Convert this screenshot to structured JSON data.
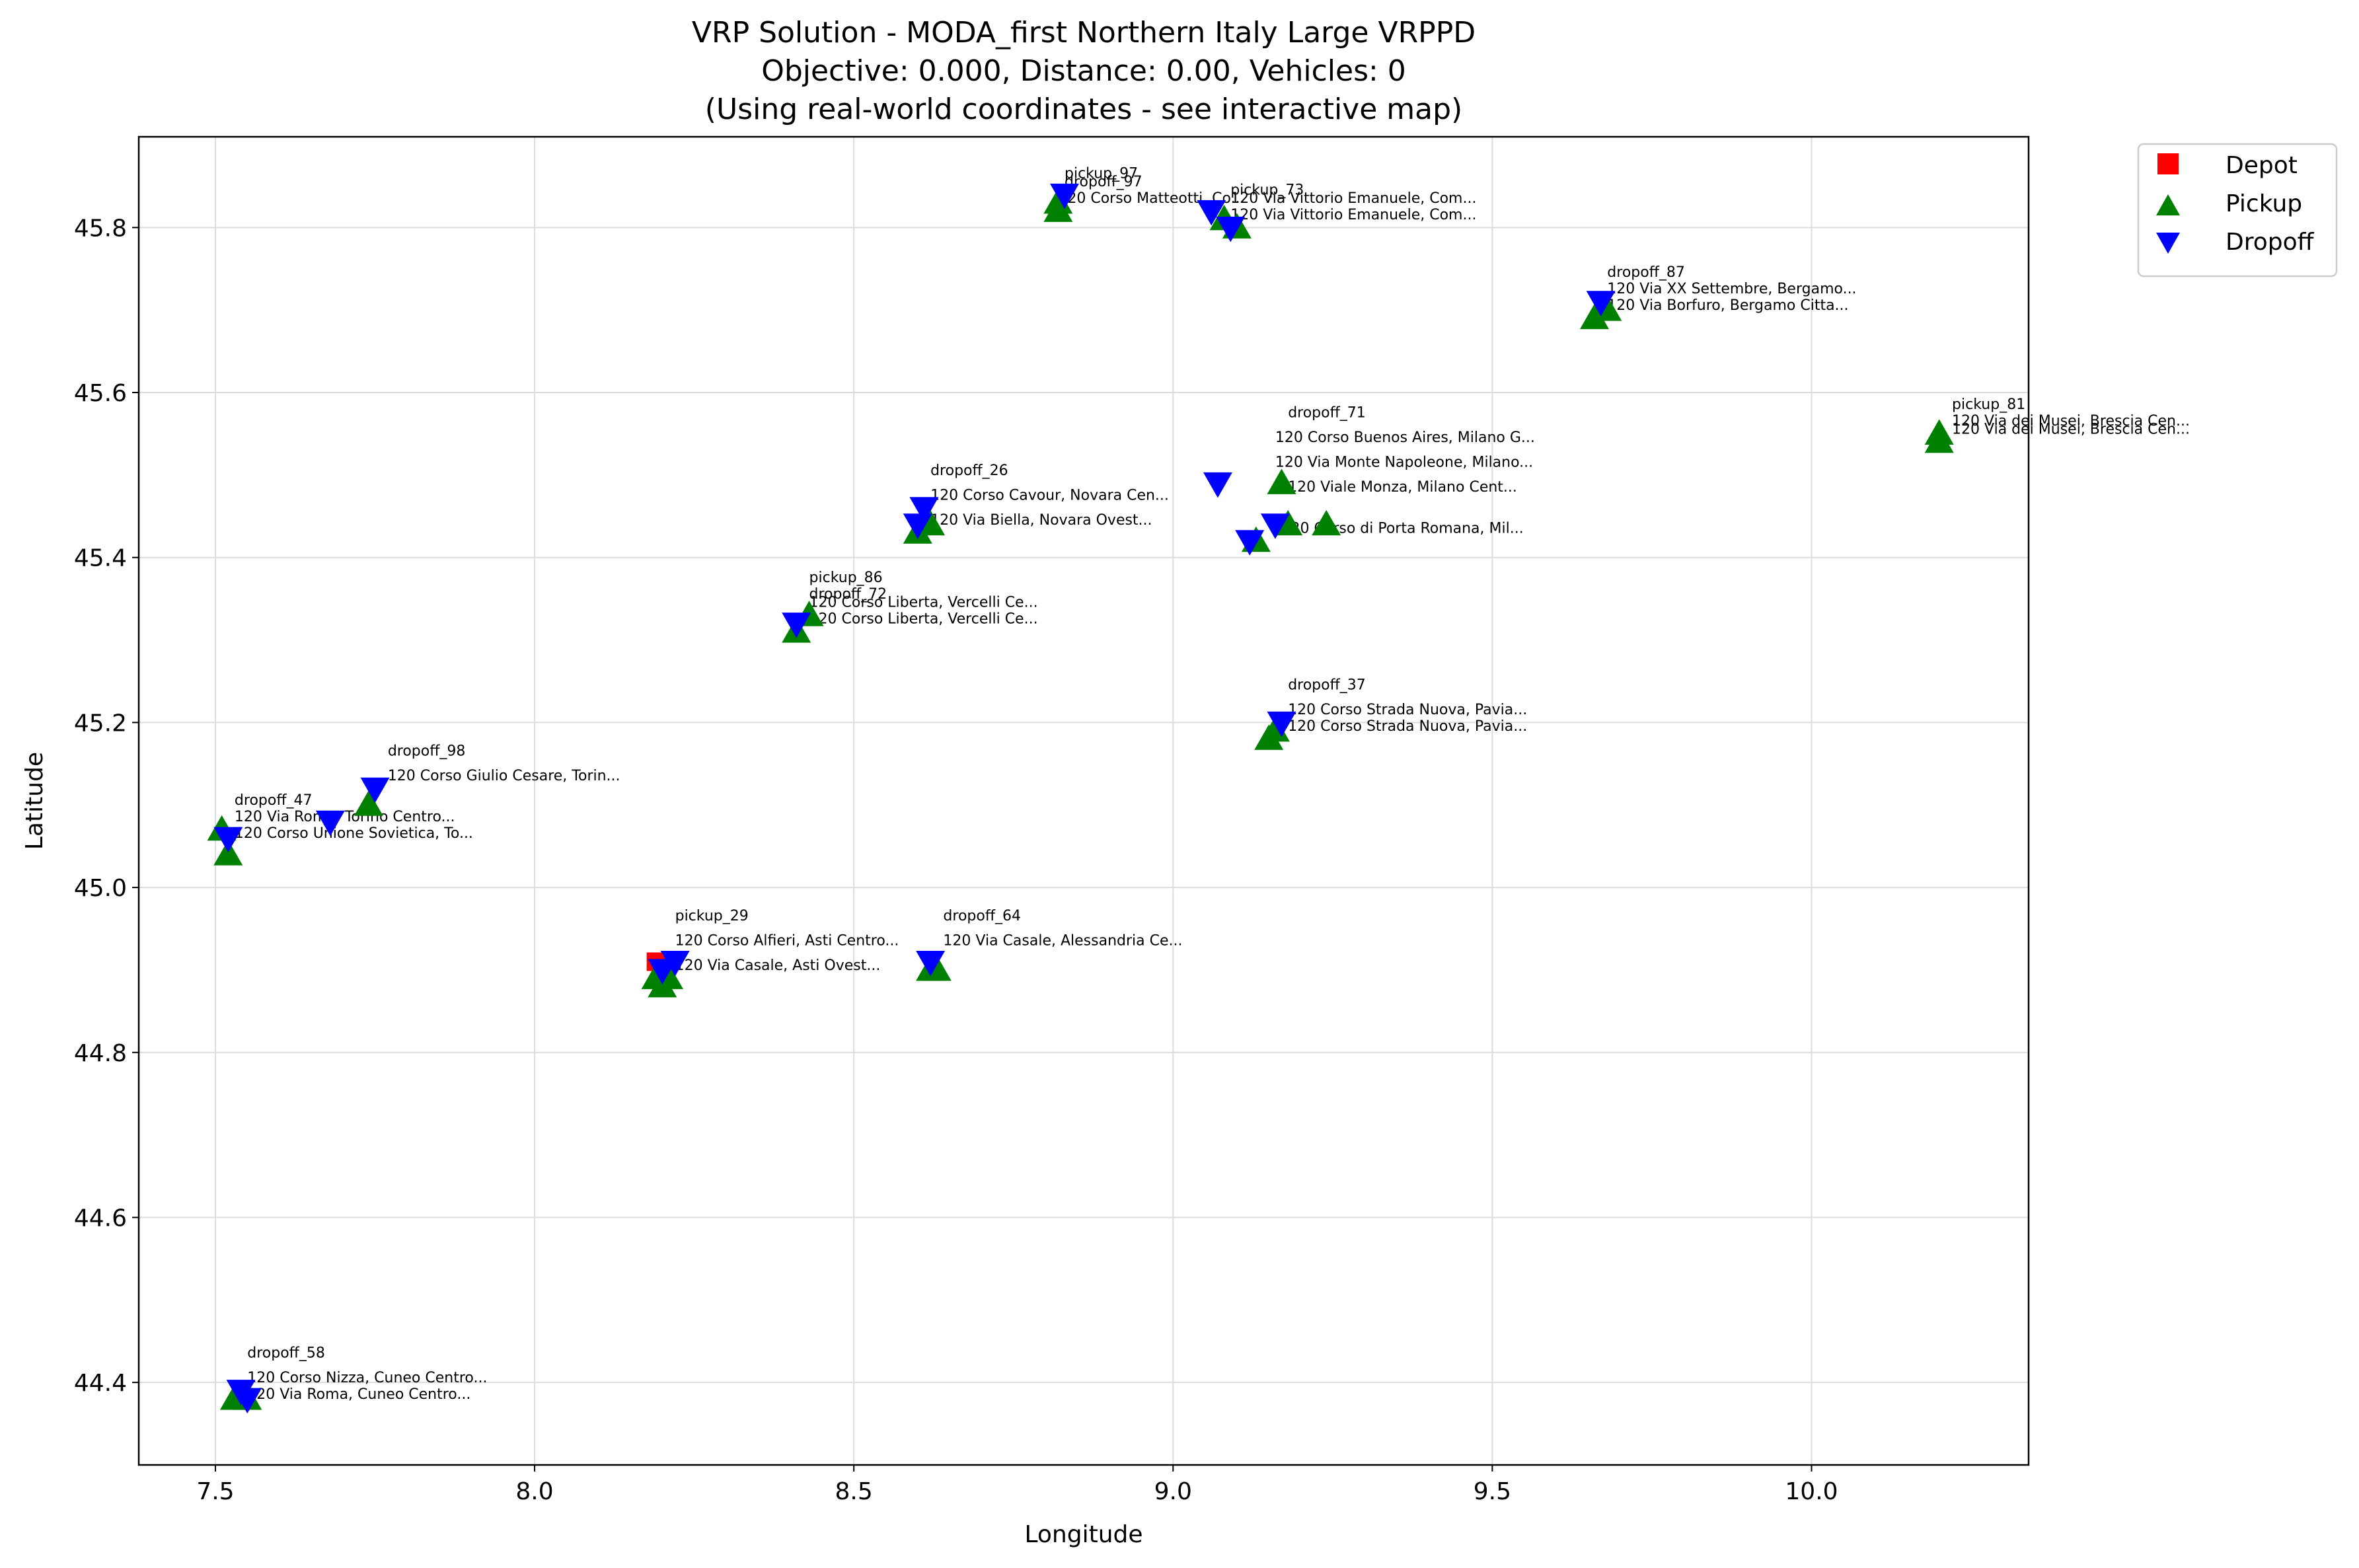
{
  "chart_data": {
    "type": "scatter",
    "title": [
      "VRP Solution - MODA_first Northern Italy Large VRPPD",
      "Objective: 0.000, Distance: 0.00, Vehicles: 0",
      "(Using real-world coordinates - see interactive map)"
    ],
    "xlabel": "Longitude",
    "ylabel": "Latitude",
    "xlim": [
      7.38,
      10.34
    ],
    "ylim": [
      44.3,
      45.91
    ],
    "xticks": [
      "7.5",
      "8.0",
      "8.5",
      "9.0",
      "9.5",
      "10.0"
    ],
    "yticks": [
      "44.4",
      "44.6",
      "44.8",
      "45.0",
      "45.2",
      "45.4",
      "45.6",
      "45.8"
    ],
    "grid": true,
    "legend_position": "outside-top-right",
    "colors": {
      "depot": "#ff0000",
      "pickup": "#008000",
      "dropoff": "#0000ff"
    },
    "series": [
      {
        "name": "Depot",
        "marker": "square",
        "color": "#ff0000",
        "points": [
          {
            "x": 8.19,
            "y": 44.91
          }
        ]
      },
      {
        "name": "Pickup",
        "marker": "triangle-up",
        "color": "#008000",
        "points": [
          {
            "x": 8.82,
            "y": 45.82,
            "label": "pickup_97"
          },
          {
            "x": 8.82,
            "y": 45.83
          },
          {
            "x": 9.08,
            "y": 45.81,
            "label": "pickup_73"
          },
          {
            "x": 9.1,
            "y": 45.8
          },
          {
            "x": 9.66,
            "y": 45.69
          },
          {
            "x": 9.68,
            "y": 45.7
          },
          {
            "x": 10.2,
            "y": 45.54,
            "label": "pickup_81"
          },
          {
            "x": 10.2,
            "y": 45.55
          },
          {
            "x": 9.17,
            "y": 45.49
          },
          {
            "x": 9.13,
            "y": 45.42
          },
          {
            "x": 9.18,
            "y": 45.44
          },
          {
            "x": 9.24,
            "y": 45.44
          },
          {
            "x": 8.6,
            "y": 45.43
          },
          {
            "x": 8.62,
            "y": 45.44
          },
          {
            "x": 8.41,
            "y": 45.31
          },
          {
            "x": 8.43,
            "y": 45.33,
            "label": "pickup_86"
          },
          {
            "x": 9.16,
            "y": 45.19
          },
          {
            "x": 9.15,
            "y": 45.18
          },
          {
            "x": 7.52,
            "y": 45.04
          },
          {
            "x": 7.51,
            "y": 45.07
          },
          {
            "x": 7.74,
            "y": 45.1
          },
          {
            "x": 8.19,
            "y": 44.89
          },
          {
            "x": 8.2,
            "y": 44.88
          },
          {
            "x": 8.21,
            "y": 44.89,
            "label": "pickup_29"
          },
          {
            "x": 8.62,
            "y": 44.9
          },
          {
            "x": 8.63,
            "y": 44.9
          },
          {
            "x": 7.53,
            "y": 44.38
          },
          {
            "x": 7.55,
            "y": 44.38
          }
        ]
      },
      {
        "name": "Dropoff",
        "marker": "triangle-down",
        "color": "#0000ff",
        "points": [
          {
            "x": 8.83,
            "y": 45.84,
            "label": "dropoff_97"
          },
          {
            "x": 9.06,
            "y": 45.82
          },
          {
            "x": 9.09,
            "y": 45.8
          },
          {
            "x": 9.67,
            "y": 45.71,
            "label": "dropoff_87"
          },
          {
            "x": 9.07,
            "y": 45.49
          },
          {
            "x": 9.12,
            "y": 45.42
          },
          {
            "x": 9.16,
            "y": 45.44,
            "label": "dropoff_71"
          },
          {
            "x": 8.6,
            "y": 45.44,
            "label": "dropoff_26"
          },
          {
            "x": 8.61,
            "y": 45.46
          },
          {
            "x": 8.41,
            "y": 45.32,
            "label": "dropoff_72"
          },
          {
            "x": 9.17,
            "y": 45.2,
            "label": "dropoff_37"
          },
          {
            "x": 7.52,
            "y": 45.06
          },
          {
            "x": 7.68,
            "y": 45.08
          },
          {
            "x": 7.75,
            "y": 45.12,
            "label": "dropoff_98"
          },
          {
            "x": 8.2,
            "y": 44.9
          },
          {
            "x": 8.22,
            "y": 44.91
          },
          {
            "x": 8.62,
            "y": 44.91,
            "label": "dropoff_64"
          },
          {
            "x": 7.54,
            "y": 44.39,
            "label": "dropoff_58"
          },
          {
            "x": 7.55,
            "y": 44.38
          }
        ]
      }
    ],
    "labels": [
      {
        "x": 8.83,
        "y": 45.86,
        "text": "pickup_97"
      },
      {
        "x": 8.83,
        "y": 45.85,
        "text": "dropoff_97"
      },
      {
        "x": 8.82,
        "y": 45.83,
        "text": "120 Corso Matteotti, Co..."
      },
      {
        "x": 9.09,
        "y": 45.84,
        "text": "pickup_73"
      },
      {
        "x": 9.09,
        "y": 45.83,
        "text": "120 Via Vittorio Emanuele, Com..."
      },
      {
        "x": 9.09,
        "y": 45.81,
        "text": "120 Via Vittorio Emanuele, Com..."
      },
      {
        "x": 9.68,
        "y": 45.74,
        "text": "dropoff_87"
      },
      {
        "x": 9.68,
        "y": 45.72,
        "text": "120 Via XX Settembre, Bergamo..."
      },
      {
        "x": 9.68,
        "y": 45.7,
        "text": "120 Via Borfuro, Bergamo Citta..."
      },
      {
        "x": 10.22,
        "y": 45.58,
        "text": "pickup_81"
      },
      {
        "x": 10.22,
        "y": 45.56,
        "text": "120 Via dei Musei, Brescia Cen..."
      },
      {
        "x": 10.22,
        "y": 45.55,
        "text": "120 Via dei Musei, Brescia Cen..."
      },
      {
        "x": 9.18,
        "y": 45.57,
        "text": "dropoff_71"
      },
      {
        "x": 9.16,
        "y": 45.54,
        "text": "120 Corso Buenos Aires, Milano G..."
      },
      {
        "x": 9.16,
        "y": 45.51,
        "text": "120 Via Monte Napoleone, Milano..."
      },
      {
        "x": 9.18,
        "y": 45.48,
        "text": "120 Viale Monza, Milano Cent..."
      },
      {
        "x": 9.17,
        "y": 45.43,
        "text": "120 Corso di Porta Romana, Mil..."
      },
      {
        "x": 8.62,
        "y": 45.5,
        "text": "dropoff_26"
      },
      {
        "x": 8.62,
        "y": 45.47,
        "text": "120 Corso Cavour, Novara Cen..."
      },
      {
        "x": 8.62,
        "y": 45.44,
        "text": "120 Via Biella, Novara Ovest..."
      },
      {
        "x": 8.43,
        "y": 45.37,
        "text": "pickup_86"
      },
      {
        "x": 8.43,
        "y": 45.35,
        "text": "dropoff_72"
      },
      {
        "x": 8.43,
        "y": 45.34,
        "text": "120 Corso Liberta, Vercelli Ce..."
      },
      {
        "x": 8.43,
        "y": 45.32,
        "text": "120 Corso Liberta, Vercelli Ce..."
      },
      {
        "x": 9.18,
        "y": 45.24,
        "text": "dropoff_37"
      },
      {
        "x": 9.18,
        "y": 45.21,
        "text": "120 Corso Strada Nuova, Pavia..."
      },
      {
        "x": 9.18,
        "y": 45.19,
        "text": "120 Corso Strada Nuova, Pavia..."
      },
      {
        "x": 7.77,
        "y": 45.16,
        "text": "dropoff_98"
      },
      {
        "x": 7.77,
        "y": 45.13,
        "text": "120 Corso Giulio Cesare, Torin..."
      },
      {
        "x": 7.53,
        "y": 45.1,
        "text": "dropoff_47"
      },
      {
        "x": 7.53,
        "y": 45.08,
        "text": "120 Via Roma, Torino Centro..."
      },
      {
        "x": 7.53,
        "y": 45.06,
        "text": "120 Corso Unione Sovietica, To..."
      },
      {
        "x": 8.22,
        "y": 44.96,
        "text": "pickup_29"
      },
      {
        "x": 8.22,
        "y": 44.93,
        "text": "120 Corso Alfieri, Asti Centro..."
      },
      {
        "x": 8.22,
        "y": 44.9,
        "text": "120 Via Casale, Asti Ovest..."
      },
      {
        "x": 8.64,
        "y": 44.96,
        "text": "dropoff_64"
      },
      {
        "x": 8.64,
        "y": 44.93,
        "text": "120 Via Casale, Alessandria Ce..."
      },
      {
        "x": 7.55,
        "y": 44.43,
        "text": "dropoff_58"
      },
      {
        "x": 7.55,
        "y": 44.4,
        "text": "120 Corso Nizza, Cuneo Centro..."
      },
      {
        "x": 7.55,
        "y": 44.38,
        "text": "120 Via Roma, Cuneo Centro..."
      }
    ]
  }
}
